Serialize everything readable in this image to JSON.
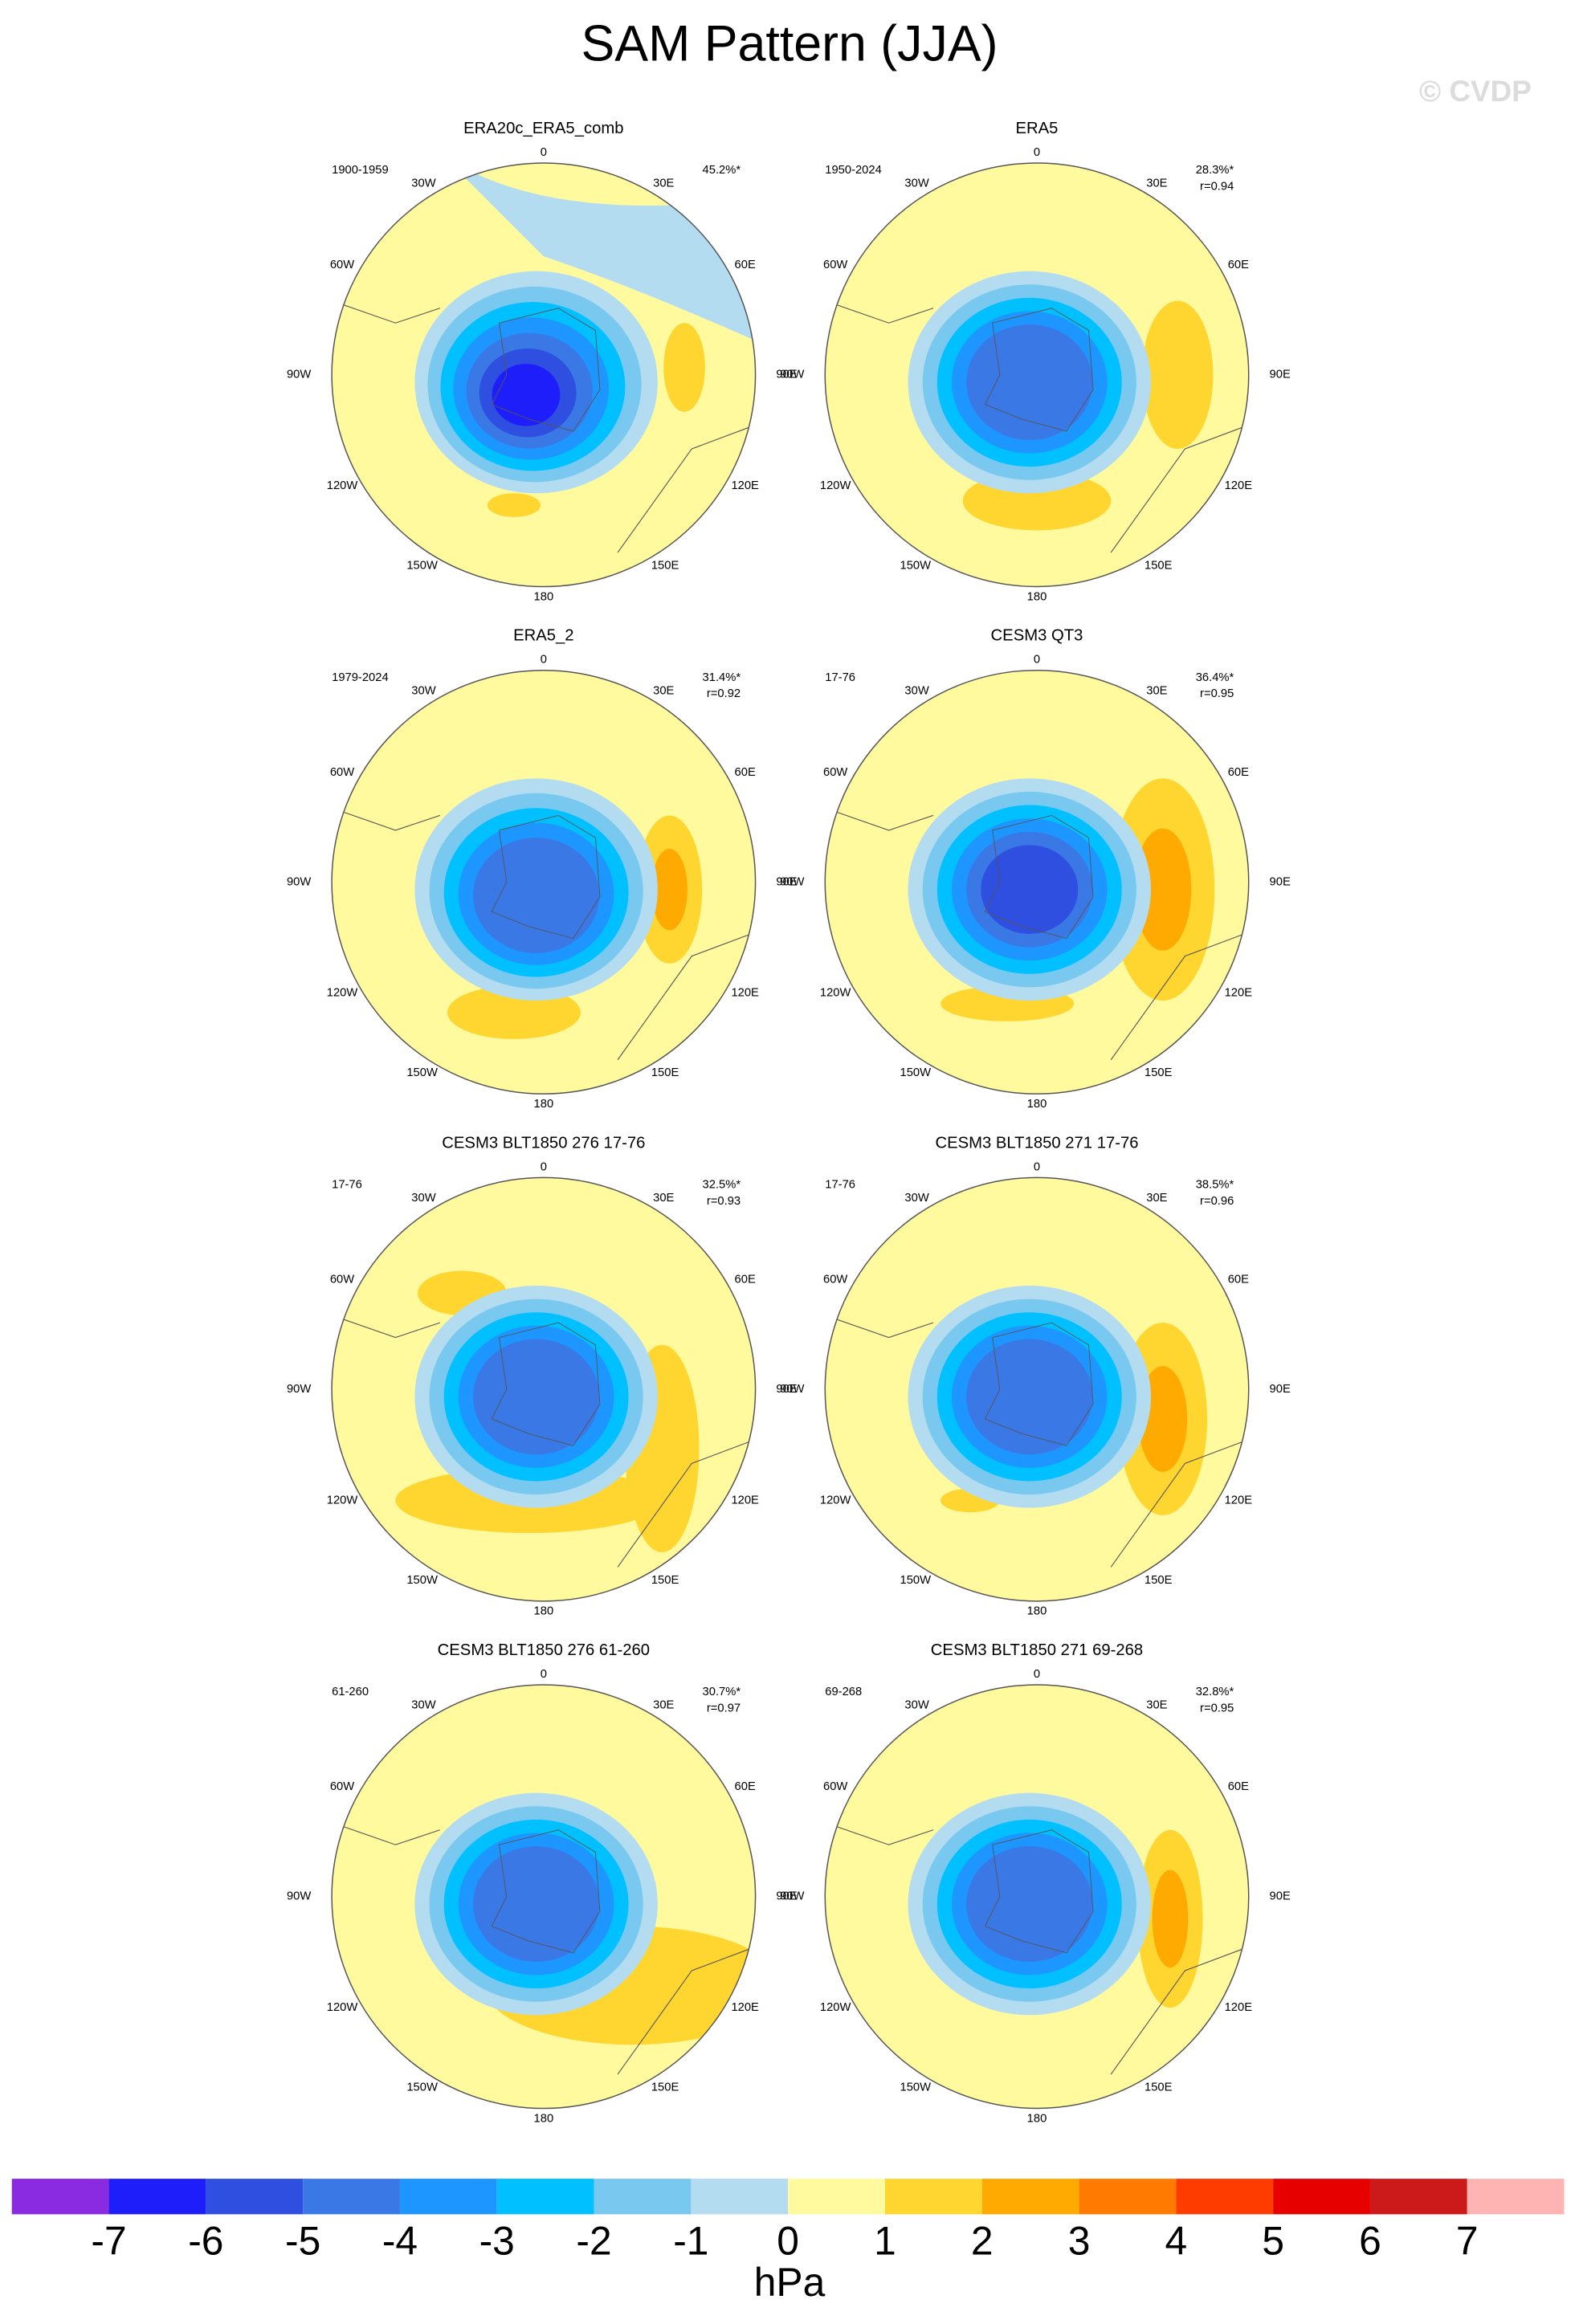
{
  "title": "SAM Pattern (JJA)",
  "watermark": "© CVDP",
  "longitude_labels": [
    "0",
    "30E",
    "60E",
    "90E",
    "120E",
    "150E",
    "180",
    "150W",
    "120W",
    "90W",
    "60W",
    "30W"
  ],
  "panels": [
    {
      "title": "ERA20c_ERA5_comb",
      "period": "1900-1959",
      "variance": "45.2%*"
    },
    {
      "title": "ERA5",
      "period": "1950-2024",
      "variance": "28.3%*",
      "r": "r=0.94"
    },
    {
      "title": "ERA5_2",
      "period": "1979-2024",
      "variance": "31.4%*",
      "r": "r=0.92"
    },
    {
      "title": "CESM3 QT3",
      "period": "17-76",
      "variance": "36.4%*",
      "r": "r=0.95"
    },
    {
      "title": "CESM3 BLT1850 276 17-76",
      "period": "17-76",
      "variance": "32.5%*",
      "r": "r=0.93"
    },
    {
      "title": "CESM3 BLT1850 271 17-76",
      "period": "17-76",
      "variance": "38.5%*",
      "r": "r=0.96"
    },
    {
      "title": "CESM3 BLT1850 276 61-260",
      "period": "61-260",
      "variance": "30.7%*",
      "r": "r=0.97"
    },
    {
      "title": "CESM3 BLT1850 271 69-268",
      "period": "69-268",
      "variance": "32.8%*",
      "r": "r=0.95"
    }
  ],
  "colorbar": {
    "levels": [
      -7,
      -6,
      -5,
      -4,
      -3,
      -2,
      -1,
      0,
      1,
      2,
      3,
      4,
      5,
      6,
      7
    ],
    "colors": [
      "#8a2be2",
      "#1e1efa",
      "#2e4fe0",
      "#3a78e6",
      "#1e96ff",
      "#00c0ff",
      "#78c8f0",
      "#b4dcf0",
      "#fffa9e",
      "#ffd530",
      "#ffaa00",
      "#ff7a00",
      "#ff3c00",
      "#e60000",
      "#cc1a1a",
      "#ffb4b4"
    ],
    "unit": "hPa"
  }
}
